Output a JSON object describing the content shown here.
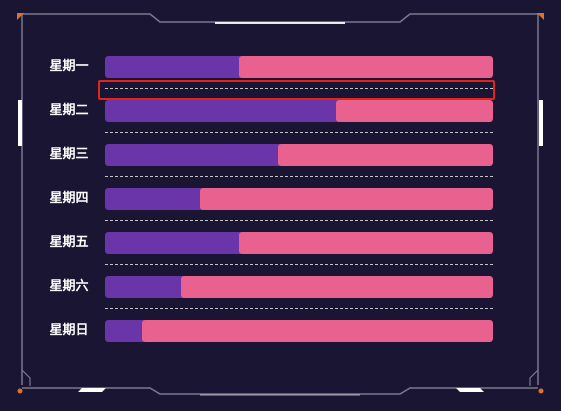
{
  "chart_data": {
    "type": "bar",
    "orientation": "horizontal",
    "stacked": true,
    "categories": [
      "星期一",
      "星期二",
      "星期三",
      "星期四",
      "星期五",
      "星期六",
      "星期日"
    ],
    "series": [
      {
        "values": [
          35,
          60,
          45,
          25,
          35,
          20,
          10
        ]
      },
      {
        "values": [
          65,
          40,
          55,
          75,
          65,
          80,
          90
        ]
      }
    ],
    "xlim": [
      0,
      100
    ],
    "grid": false,
    "legend": "none",
    "colors": {
      "series_a": "#6a35a8",
      "series_b": "#e8618f",
      "background": "#1a1533",
      "highlight": "#e0261b"
    }
  }
}
